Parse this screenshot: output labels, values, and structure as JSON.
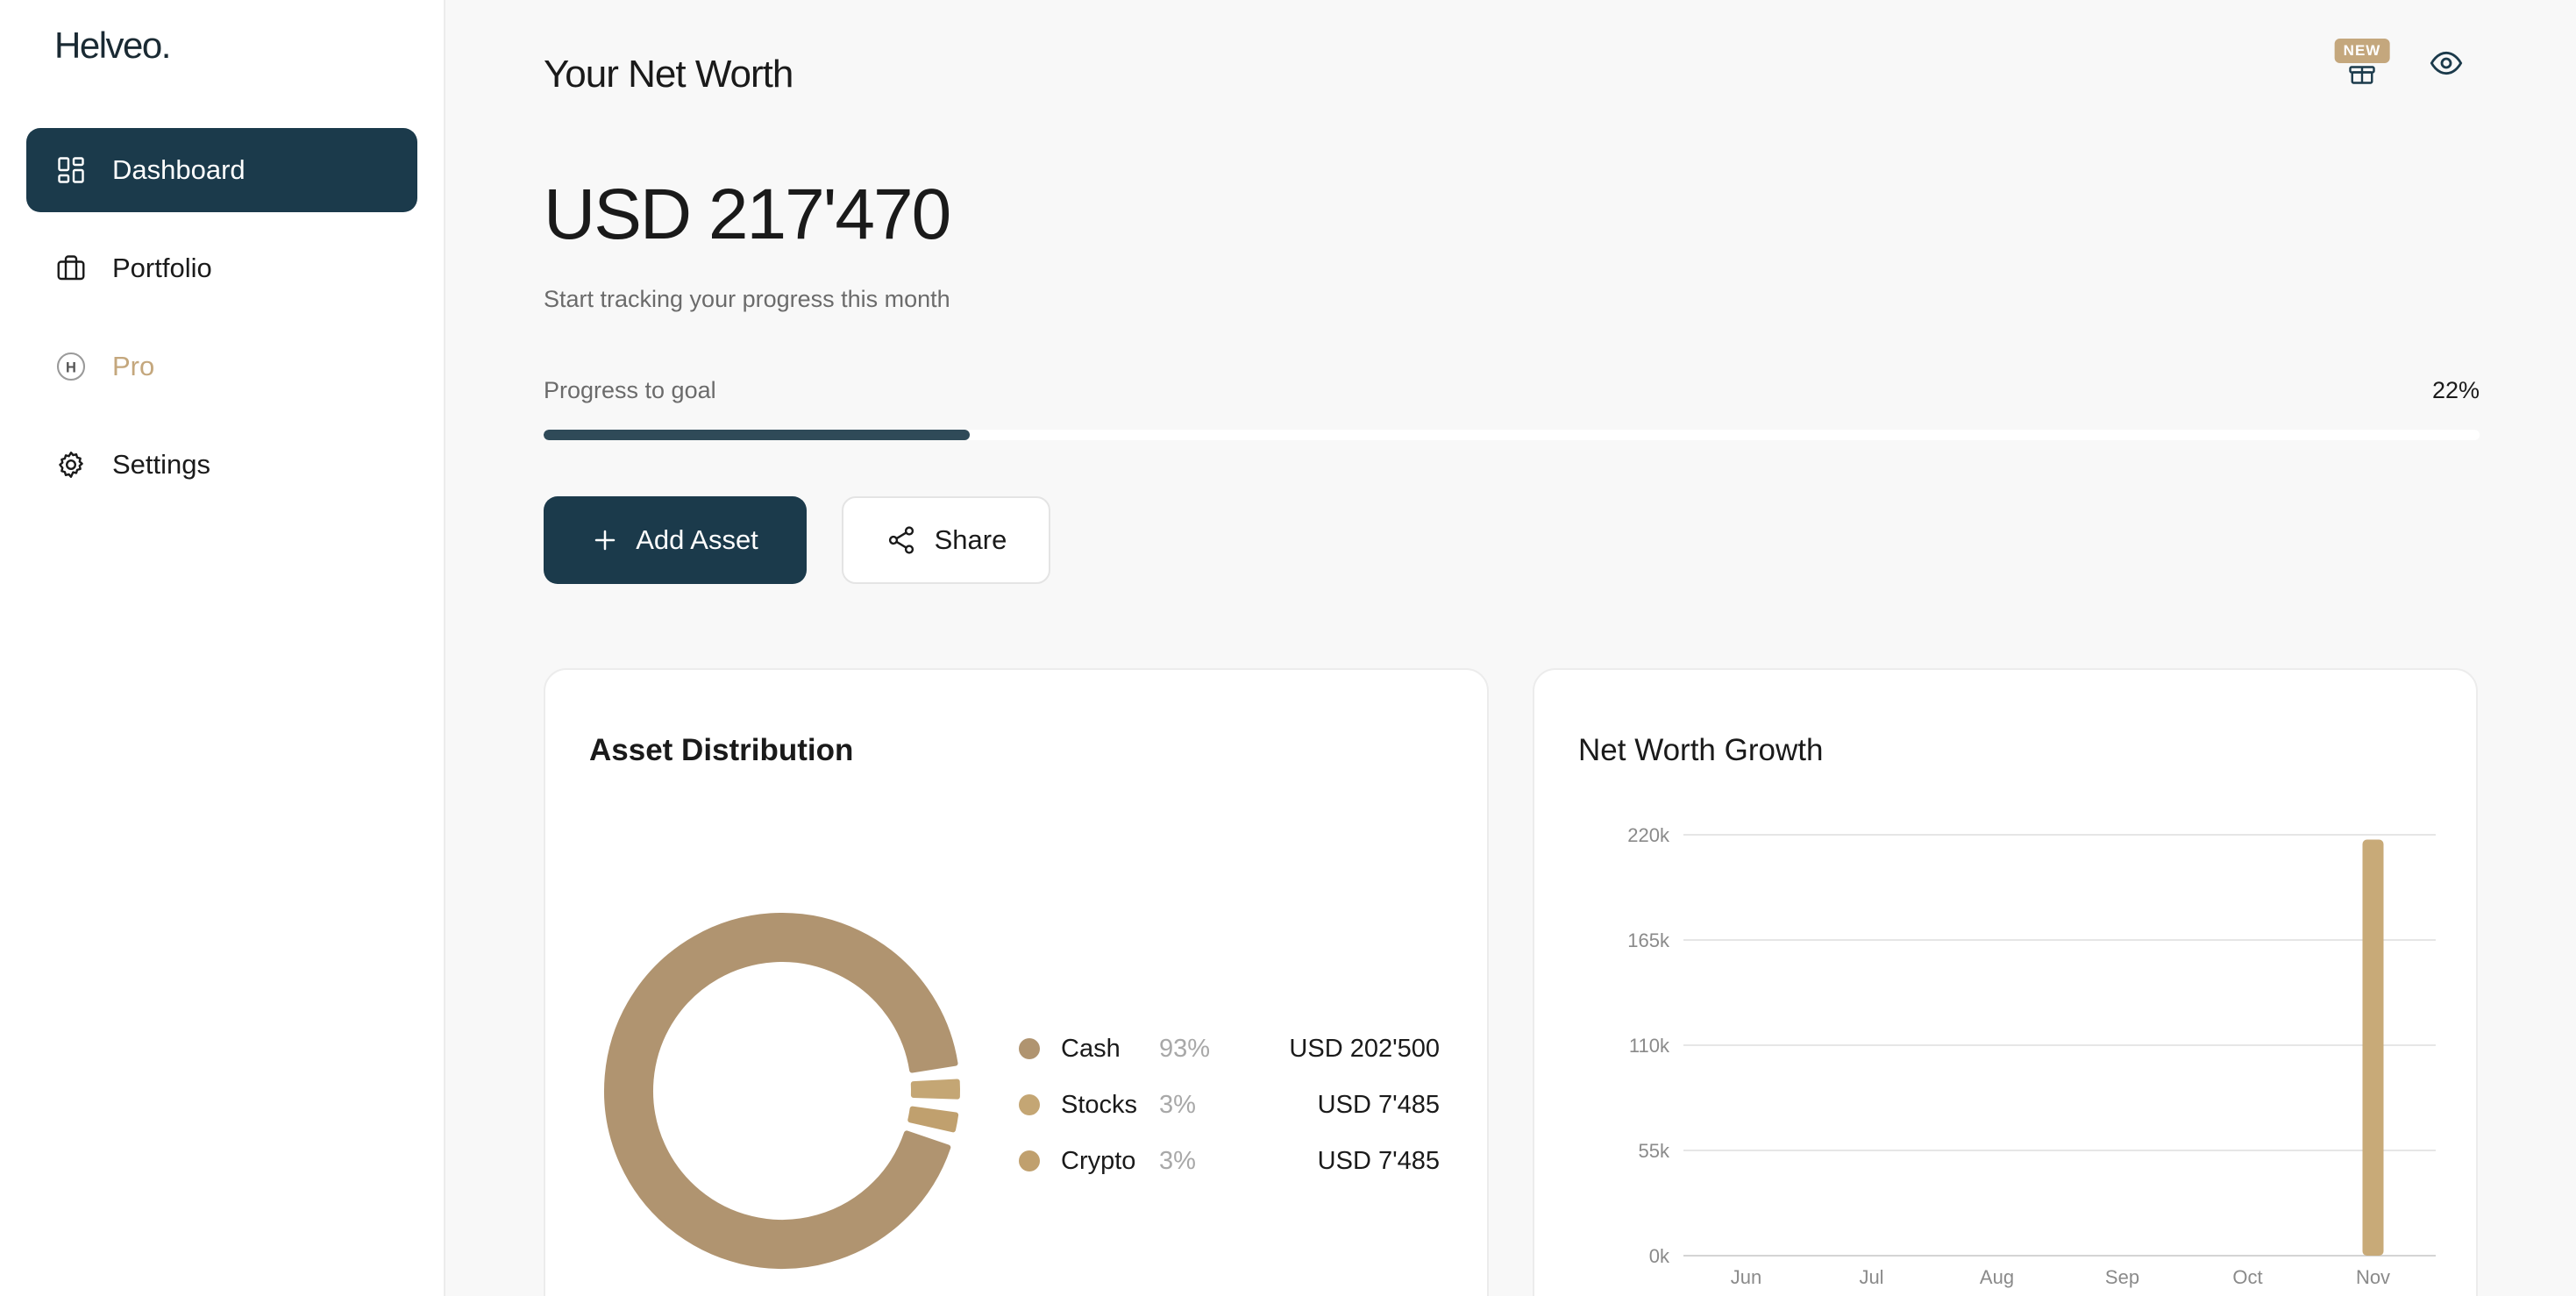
{
  "sidebar": {
    "logo": "Helveo.",
    "items": [
      {
        "label": "Dashboard",
        "icon": "dashboard-grid-icon",
        "active": true
      },
      {
        "label": "Portfolio",
        "icon": "briefcase-icon"
      },
      {
        "label": "Pro",
        "icon": "pro-h-icon"
      },
      {
        "label": "Settings",
        "icon": "gear-icon"
      }
    ]
  },
  "header": {
    "title": "Your Net Worth",
    "badge": "NEW",
    "icons": [
      "gift-icon",
      "eye-icon"
    ]
  },
  "summary": {
    "value": "USD 217'470",
    "subtitle": "Start tracking your progress this month",
    "progress_label": "Progress to goal",
    "progress_pct_label": "22%",
    "progress_fraction": 0.22
  },
  "actions": {
    "add_asset": "Add Asset",
    "share": "Share"
  },
  "distribution": {
    "title": "Asset Distribution",
    "items": [
      {
        "name": "Cash",
        "pct": "93%",
        "value": "USD 202'500",
        "color": "#b09470",
        "share": 93
      },
      {
        "name": "Stocks",
        "pct": "3%",
        "value": "USD 7'485",
        "color": "#c4a674",
        "share": 3
      },
      {
        "name": "Crypto",
        "pct": "3%",
        "value": "USD 7'485",
        "color": "#c0a06e",
        "share": 3
      }
    ]
  },
  "chart_data": {
    "type": "bar",
    "title": "Net Worth Growth",
    "categories": [
      "Jun",
      "Jul",
      "Aug",
      "Sep",
      "Oct",
      "Nov"
    ],
    "values": [
      0,
      0,
      0,
      0,
      0,
      217470
    ],
    "yticks": [
      "0k",
      "55k",
      "110k",
      "165k",
      "220k"
    ],
    "ylim": [
      0,
      220000
    ],
    "grid": true,
    "bar_color": "#c8aa78"
  },
  "colors": {
    "primary": "#1b3a4b",
    "accent": "#c4a77d"
  }
}
